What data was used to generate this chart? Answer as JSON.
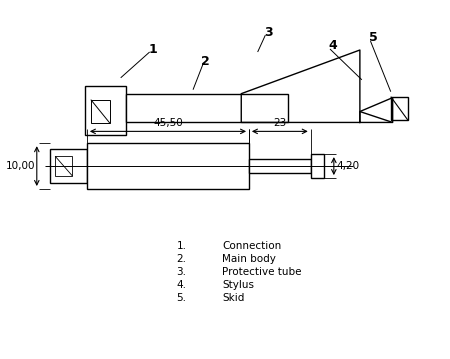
{
  "bg_color": "#ffffff",
  "line_color": "#000000",
  "legend_items": [
    {
      "num": "1.",
      "text": "Connection"
    },
    {
      "num": "2.",
      "text": "Main body"
    },
    {
      "num": "3.",
      "text": "Protective tube"
    },
    {
      "num": "4.",
      "text": "Stylus"
    },
    {
      "num": "5.",
      "text": "Skid"
    }
  ],
  "dim_45": "45,50",
  "dim_23": "23",
  "dim_420": "4,20",
  "dim_10": "10,00"
}
